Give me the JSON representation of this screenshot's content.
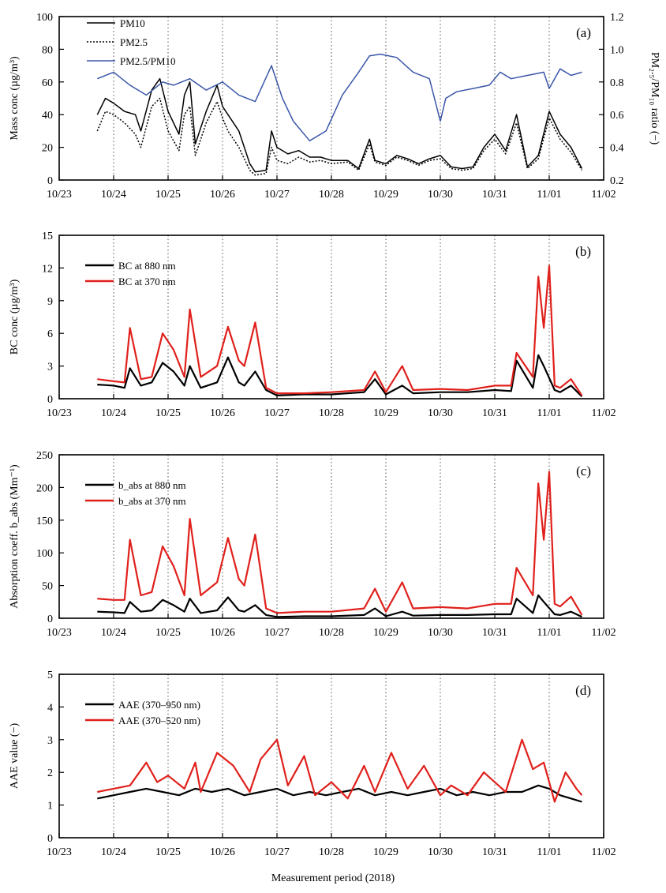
{
  "figure_xlabel": "Measurement period (2018)",
  "colors": {
    "black": "#000000",
    "red": "#e0201b",
    "blue": "#3a56a8",
    "axis": "#000000",
    "grid": "#555555"
  },
  "chart_data": [
    {
      "id": "a",
      "type": "line",
      "panel_label": "(a)",
      "ylabel": "Mass conc (µg/m³)",
      "y2label": "PM₂.₅/PM₁₀ ratio (−)",
      "ylim": [
        0,
        100
      ],
      "yticks": [
        0,
        20,
        40,
        60,
        80,
        100
      ],
      "y2lim": [
        0.2,
        1.2
      ],
      "y2ticks": [
        0.2,
        0.4,
        0.6,
        0.8,
        1.0,
        1.2
      ],
      "x_categories": [
        "10/23",
        "10/24",
        "10/25",
        "10/26",
        "10/27",
        "10/28",
        "10/29",
        "10/30",
        "10/31",
        "11/01",
        "11/02"
      ],
      "xlim": [
        0,
        10
      ],
      "gridlines_at_days": true,
      "series": [
        {
          "name": "PM10",
          "legend": "PM10",
          "axis": "left",
          "style": "solid",
          "color": "black",
          "x": [
            0.7,
            0.85,
            1.0,
            1.2,
            1.4,
            1.5,
            1.7,
            1.85,
            2.0,
            2.2,
            2.3,
            2.4,
            2.5,
            2.7,
            2.9,
            3.0,
            3.1,
            3.3,
            3.5,
            3.6,
            3.8,
            3.9,
            4.0,
            4.2,
            4.4,
            4.6,
            4.8,
            5.0,
            5.3,
            5.5,
            5.7,
            5.8,
            6.0,
            6.2,
            6.4,
            6.6,
            6.8,
            7.0,
            7.2,
            7.4,
            7.6,
            7.8,
            8.0,
            8.2,
            8.4,
            8.6,
            8.8,
            9.0,
            9.2,
            9.4,
            9.6
          ],
          "values": [
            40,
            50,
            47,
            42,
            40,
            30,
            55,
            62,
            42,
            28,
            52,
            60,
            22,
            42,
            58,
            45,
            40,
            30,
            10,
            5,
            6,
            30,
            20,
            16,
            18,
            14,
            14,
            12,
            12,
            7,
            25,
            12,
            10,
            15,
            13,
            10,
            13,
            15,
            8,
            7,
            8,
            20,
            28,
            18,
            40,
            8,
            15,
            42,
            28,
            20,
            7
          ]
        },
        {
          "name": "PM2.5",
          "legend": "PM2.5",
          "axis": "left",
          "style": "dotted",
          "color": "black",
          "x": [
            0.7,
            0.85,
            1.0,
            1.2,
            1.4,
            1.5,
            1.7,
            1.85,
            2.0,
            2.2,
            2.3,
            2.4,
            2.5,
            2.7,
            2.9,
            3.0,
            3.1,
            3.3,
            3.5,
            3.6,
            3.8,
            3.9,
            4.0,
            4.2,
            4.4,
            4.6,
            4.8,
            5.0,
            5.3,
            5.5,
            5.7,
            5.8,
            6.0,
            6.2,
            6.4,
            6.6,
            6.8,
            7.0,
            7.2,
            7.4,
            7.6,
            7.8,
            8.0,
            8.2,
            8.4,
            8.6,
            8.8,
            9.0,
            9.2,
            9.4,
            9.6
          ],
          "values": [
            30,
            42,
            40,
            35,
            28,
            20,
            45,
            50,
            30,
            18,
            40,
            45,
            15,
            35,
            48,
            38,
            30,
            20,
            6,
            3,
            4,
            20,
            12,
            10,
            14,
            11,
            12,
            10,
            11,
            6,
            22,
            11,
            9,
            14,
            12,
            9,
            12,
            13,
            7,
            6,
            7,
            18,
            25,
            16,
            35,
            7,
            13,
            38,
            25,
            17,
            6
          ]
        },
        {
          "name": "PM2.5/PM10",
          "legend": "PM2.5/PM10",
          "axis": "right",
          "style": "solid",
          "color": "blue",
          "x": [
            0.7,
            1.0,
            1.3,
            1.6,
            1.9,
            2.1,
            2.4,
            2.7,
            3.0,
            3.3,
            3.6,
            3.9,
            4.1,
            4.3,
            4.6,
            4.9,
            5.2,
            5.5,
            5.7,
            5.9,
            6.2,
            6.5,
            6.8,
            7.0,
            7.1,
            7.3,
            7.6,
            7.9,
            8.1,
            8.3,
            8.6,
            8.9,
            9.0,
            9.2,
            9.4,
            9.6
          ],
          "values": [
            0.82,
            0.86,
            0.78,
            0.72,
            0.8,
            0.78,
            0.82,
            0.75,
            0.8,
            0.72,
            0.68,
            0.9,
            0.7,
            0.56,
            0.44,
            0.5,
            0.72,
            0.86,
            0.96,
            0.97,
            0.95,
            0.86,
            0.82,
            0.56,
            0.7,
            0.74,
            0.76,
            0.78,
            0.86,
            0.82,
            0.84,
            0.86,
            0.76,
            0.88,
            0.84,
            0.86
          ]
        }
      ]
    },
    {
      "id": "b",
      "type": "line",
      "panel_label": "(b)",
      "ylabel": "BC conc (µg/m³)",
      "ylim": [
        0,
        15
      ],
      "yticks": [
        0,
        3,
        6,
        9,
        12,
        15
      ],
      "x_categories": [
        "10/23",
        "10/24",
        "10/25",
        "10/26",
        "10/27",
        "10/28",
        "10/29",
        "10/30",
        "10/31",
        "11/01",
        "11/02"
      ],
      "xlim": [
        0,
        10
      ],
      "gridlines_at_days": true,
      "series": [
        {
          "name": "BC at 880 nm",
          "legend": "BC at 880 nm",
          "color": "black",
          "x": [
            0.7,
            1.0,
            1.2,
            1.3,
            1.5,
            1.7,
            1.9,
            2.1,
            2.3,
            2.4,
            2.6,
            2.9,
            3.1,
            3.3,
            3.4,
            3.6,
            3.8,
            4.0,
            4.5,
            5.0,
            5.6,
            5.8,
            6.0,
            6.3,
            6.5,
            7.0,
            7.5,
            8.0,
            8.3,
            8.4,
            8.7,
            8.8,
            8.9,
            9.1,
            9.2,
            9.4,
            9.6
          ],
          "values": [
            1.3,
            1.2,
            1.0,
            2.8,
            1.2,
            1.5,
            3.3,
            2.5,
            1.2,
            3.0,
            1.0,
            1.5,
            3.8,
            1.5,
            1.2,
            2.5,
            0.8,
            0.3,
            0.4,
            0.4,
            0.6,
            1.8,
            0.4,
            1.2,
            0.5,
            0.6,
            0.6,
            0.8,
            0.7,
            3.5,
            1.0,
            4.0,
            3.0,
            0.8,
            0.6,
            1.2,
            0.2
          ]
        },
        {
          "name": "BC at 370 nm",
          "legend": "BC at 370 nm",
          "color": "red",
          "x": [
            0.7,
            1.0,
            1.2,
            1.3,
            1.5,
            1.7,
            1.9,
            2.1,
            2.3,
            2.4,
            2.6,
            2.9,
            3.1,
            3.3,
            3.4,
            3.6,
            3.8,
            4.0,
            4.5,
            5.0,
            5.6,
            5.8,
            6.0,
            6.3,
            6.5,
            7.0,
            7.5,
            8.0,
            8.3,
            8.4,
            8.7,
            8.8,
            8.9,
            9.0,
            9.1,
            9.2,
            9.4,
            9.6
          ],
          "values": [
            1.8,
            1.6,
            1.5,
            6.5,
            1.8,
            2.0,
            6.0,
            4.5,
            2.0,
            8.2,
            2.0,
            3.0,
            6.6,
            3.5,
            3.0,
            7.0,
            1.0,
            0.5,
            0.5,
            0.6,
            0.8,
            2.5,
            0.6,
            3.0,
            0.8,
            0.9,
            0.8,
            1.2,
            1.2,
            4.2,
            2.0,
            11.2,
            6.5,
            12.2,
            1.2,
            1.0,
            1.8,
            0.3
          ]
        }
      ]
    },
    {
      "id": "c",
      "type": "line",
      "panel_label": "(c)",
      "ylabel": "Absorption coeff. b_abs (Mm⁻¹)",
      "ylim": [
        0,
        250
      ],
      "yticks": [
        0,
        50,
        100,
        150,
        200,
        250
      ],
      "x_categories": [
        "10/23",
        "10/24",
        "10/25",
        "10/26",
        "10/27",
        "10/28",
        "10/29",
        "10/30",
        "10/31",
        "11/01",
        "11/02"
      ],
      "xlim": [
        0,
        10
      ],
      "gridlines_at_days": true,
      "series": [
        {
          "name": "b_abs at 880 nm",
          "legend": "b_abs at 880 nm",
          "color": "black",
          "x": [
            0.7,
            1.0,
            1.2,
            1.3,
            1.5,
            1.7,
            1.9,
            2.1,
            2.3,
            2.4,
            2.6,
            2.9,
            3.1,
            3.3,
            3.4,
            3.6,
            3.8,
            4.0,
            4.5,
            5.0,
            5.6,
            5.8,
            6.0,
            6.3,
            6.5,
            7.0,
            7.5,
            8.0,
            8.3,
            8.4,
            8.7,
            8.8,
            8.9,
            9.1,
            9.2,
            9.4,
            9.6
          ],
          "values": [
            10,
            9,
            8,
            25,
            10,
            12,
            28,
            20,
            10,
            30,
            8,
            12,
            32,
            12,
            10,
            20,
            5,
            2,
            3,
            3,
            5,
            15,
            3,
            10,
            4,
            5,
            5,
            6,
            6,
            30,
            8,
            35,
            25,
            6,
            5,
            10,
            2
          ]
        },
        {
          "name": "b_abs at 370 nm",
          "legend": "b_abs at 370 nm",
          "color": "red",
          "x": [
            0.7,
            1.0,
            1.2,
            1.3,
            1.5,
            1.7,
            1.9,
            2.1,
            2.3,
            2.4,
            2.6,
            2.9,
            3.1,
            3.3,
            3.4,
            3.6,
            3.8,
            4.0,
            4.5,
            5.0,
            5.6,
            5.8,
            6.0,
            6.3,
            6.5,
            7.0,
            7.5,
            8.0,
            8.3,
            8.4,
            8.7,
            8.8,
            8.9,
            9.0,
            9.1,
            9.2,
            9.4,
            9.6
          ],
          "values": [
            30,
            28,
            28,
            120,
            35,
            40,
            110,
            80,
            35,
            152,
            35,
            55,
            123,
            60,
            50,
            128,
            15,
            8,
            10,
            10,
            15,
            45,
            10,
            55,
            15,
            17,
            15,
            22,
            22,
            77,
            35,
            206,
            120,
            224,
            22,
            18,
            33,
            5
          ]
        }
      ]
    },
    {
      "id": "d",
      "type": "line",
      "panel_label": "(d)",
      "ylabel": "AAE value (−)",
      "ylim": [
        0,
        5
      ],
      "yticks": [
        0,
        1,
        2,
        3,
        4,
        5
      ],
      "x_categories": [
        "10/23",
        "10/24",
        "10/25",
        "10/26",
        "10/27",
        "10/28",
        "10/29",
        "10/30",
        "10/31",
        "11/01",
        "11/02"
      ],
      "xlim": [
        0,
        10
      ],
      "gridlines_at_days": true,
      "series": [
        {
          "name": "AAE (370–950 nm)",
          "legend": "AAE (370–950 nm)",
          "color": "black",
          "x": [
            0.7,
            1.0,
            1.3,
            1.6,
            1.9,
            2.2,
            2.5,
            2.8,
            3.1,
            3.4,
            3.7,
            4.0,
            4.3,
            4.6,
            4.9,
            5.2,
            5.5,
            5.8,
            6.1,
            6.4,
            6.7,
            7.0,
            7.3,
            7.6,
            7.9,
            8.2,
            8.5,
            8.8,
            9.0,
            9.2,
            9.4,
            9.6
          ],
          "values": [
            1.2,
            1.3,
            1.4,
            1.5,
            1.4,
            1.3,
            1.5,
            1.4,
            1.5,
            1.3,
            1.4,
            1.5,
            1.3,
            1.4,
            1.3,
            1.4,
            1.5,
            1.3,
            1.4,
            1.3,
            1.4,
            1.5,
            1.3,
            1.4,
            1.3,
            1.4,
            1.4,
            1.6,
            1.5,
            1.3,
            1.2,
            1.1
          ]
        },
        {
          "name": "AAE (370–520 nm)",
          "legend": "AAE (370–520 nm)",
          "color": "red",
          "x": [
            0.7,
            1.0,
            1.3,
            1.6,
            1.8,
            2.0,
            2.3,
            2.5,
            2.6,
            2.9,
            3.2,
            3.5,
            3.7,
            4.0,
            4.2,
            4.5,
            4.7,
            5.0,
            5.3,
            5.6,
            5.8,
            6.1,
            6.4,
            6.7,
            7.0,
            7.2,
            7.5,
            7.8,
            8.2,
            8.5,
            8.7,
            8.9,
            9.1,
            9.3,
            9.5,
            9.6
          ],
          "values": [
            1.4,
            1.5,
            1.6,
            2.3,
            1.7,
            1.9,
            1.5,
            2.3,
            1.4,
            2.6,
            2.2,
            1.4,
            2.4,
            3.0,
            1.6,
            2.5,
            1.3,
            1.7,
            1.2,
            2.2,
            1.4,
            2.6,
            1.5,
            2.2,
            1.3,
            1.6,
            1.3,
            2.0,
            1.4,
            3.0,
            2.1,
            2.3,
            1.1,
            2.0,
            1.5,
            1.3
          ]
        }
      ]
    }
  ]
}
